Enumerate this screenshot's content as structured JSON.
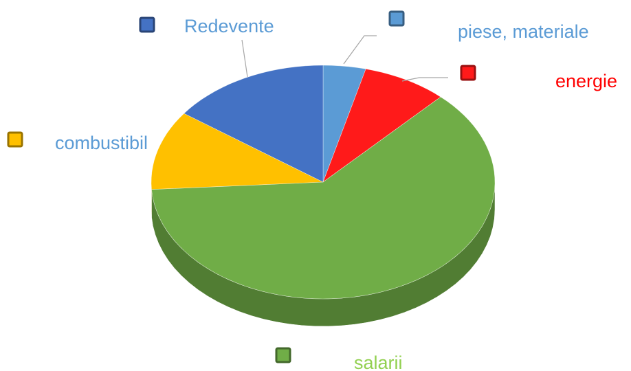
{
  "chart_data": {
    "type": "pie3d",
    "categories": [
      "piese, materiale",
      "energie",
      "salarii",
      "combustibil",
      "Redevente"
    ],
    "values": [
      4,
      8,
      62,
      11,
      15
    ],
    "colors": [
      "#5b9bd5",
      "#ff1a1a",
      "#70ad47",
      "#ffc000",
      "#4472c4"
    ],
    "label_colors": [
      "#5b9bd5",
      "#ff0000",
      "#92d050",
      "#5b9bd5",
      "#5b9bd5"
    ]
  }
}
